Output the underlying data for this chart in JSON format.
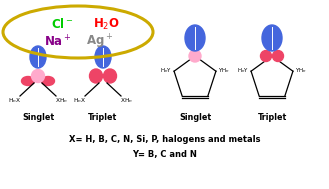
{
  "bg_color": "#ffffff",
  "ellipse_color": "#ccaa00",
  "cl_color": "#00cc00",
  "h2o_color": "#ff0000",
  "na_color": "#880088",
  "ag_color": "#888888",
  "blue_color": "#4466dd",
  "pink_color": "#ee4466",
  "light_pink": "#ffaacc",
  "black": "#000000",
  "label_singlet": "Singlet",
  "label_triplet": "Triplet",
  "bottom_line1": "X= H, B, C, N, Si, P, halogens and metals",
  "bottom_line2": "Y= B, C and N",
  "figw": 3.29,
  "figh": 1.89,
  "dpi": 100
}
